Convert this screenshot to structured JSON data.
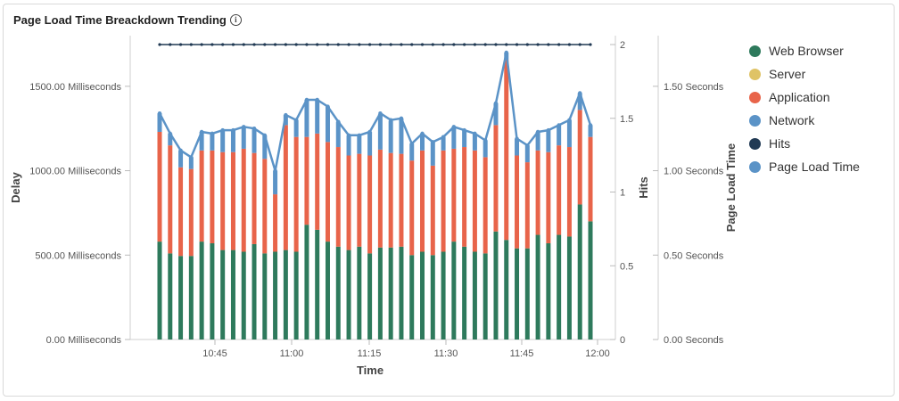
{
  "title": "Page Load Time Breackdown Trending",
  "legend": [
    {
      "label": "Web Browser",
      "color": "#2e7a5c"
    },
    {
      "label": "Server",
      "color": "#dfc366"
    },
    {
      "label": "Application",
      "color": "#e8644a"
    },
    {
      "label": "Network",
      "color": "#5b93c7"
    },
    {
      "label": "Hits",
      "color": "#213a54"
    },
    {
      "label": "Page Load Time",
      "color": "#5b93c7"
    }
  ],
  "chart_data": {
    "type": "bar",
    "stacked": true,
    "xlabel": "Time",
    "ylabel_left": "Delay",
    "ylabel_right_1": "Hits",
    "ylabel_right_2": "Page Load Time",
    "x_ticks": [
      "10:45",
      "11:00",
      "11:15",
      "11:30",
      "11:45",
      "12:00"
    ],
    "y_left_ticks": [
      "0.00 Milliseconds",
      "500.00 Milliseconds",
      "1000.00 Milliseconds",
      "1500.00 Milliseconds"
    ],
    "y_left_range": [
      0,
      1800
    ],
    "y_hits_ticks": [
      "0",
      "0.5",
      "1",
      "1.5",
      "2"
    ],
    "y_hits_range": [
      0,
      2
    ],
    "y_plt_ticks": [
      "0.00 Seconds",
      "0.50 Seconds",
      "1.00 Seconds",
      "1.50 Seconds"
    ],
    "y_plt_range": [
      0,
      1.8
    ],
    "series": [
      {
        "name": "Web Browser",
        "values": [
          580,
          510,
          495,
          495,
          580,
          570,
          530,
          530,
          520,
          565,
          510,
          520,
          530,
          520,
          680,
          650,
          580,
          550,
          530,
          550,
          510,
          545,
          545,
          550,
          500,
          520,
          500,
          520,
          580,
          550,
          520,
          510,
          640,
          590,
          540,
          540,
          620,
          570,
          620,
          610,
          800,
          700
        ]
      },
      {
        "name": "Server",
        "values": [
          0,
          0,
          0,
          0,
          0,
          0,
          0,
          0,
          0,
          0,
          0,
          0,
          0,
          0,
          0,
          0,
          0,
          0,
          0,
          0,
          0,
          0,
          0,
          0,
          0,
          0,
          0,
          0,
          0,
          0,
          0,
          0,
          0,
          0,
          0,
          0,
          0,
          0,
          0,
          0,
          0,
          0
        ]
      },
      {
        "name": "Application",
        "values": [
          650,
          640,
          525,
          515,
          540,
          550,
          580,
          580,
          610,
          540,
          560,
          340,
          740,
          680,
          520,
          570,
          590,
          590,
          560,
          550,
          580,
          580,
          560,
          550,
          560,
          600,
          530,
          600,
          550,
          590,
          600,
          570,
          630,
          1070,
          550,
          510,
          500,
          540,
          530,
          530,
          560,
          500
        ]
      },
      {
        "name": "Network",
        "values": [
          110,
          70,
          100,
          70,
          110,
          100,
          130,
          130,
          130,
          140,
          140,
          140,
          60,
          100,
          220,
          200,
          210,
          150,
          120,
          110,
          140,
          210,
          190,
          210,
          100,
          100,
          140,
          80,
          130,
          100,
          100,
          100,
          130,
          40,
          100,
          100,
          110,
          130,
          120,
          160,
          100,
          70
        ]
      },
      {
        "name": "Hits",
        "values": [
          2,
          2,
          2,
          2,
          2,
          2,
          2,
          2,
          2,
          2,
          2,
          2,
          2,
          2,
          2,
          2,
          2,
          2,
          2,
          2,
          2,
          2,
          2,
          2,
          2,
          2,
          2,
          2,
          2,
          2,
          2,
          2,
          2,
          2,
          2,
          2,
          2,
          2,
          2,
          2,
          2,
          2
        ]
      },
      {
        "name": "Page Load Time",
        "values": [
          1.34,
          1.22,
          1.12,
          1.08,
          1.23,
          1.22,
          1.24,
          1.24,
          1.26,
          1.25,
          1.21,
          1.0,
          1.33,
          1.3,
          1.42,
          1.42,
          1.38,
          1.29,
          1.21,
          1.21,
          1.23,
          1.34,
          1.3,
          1.31,
          1.16,
          1.22,
          1.17,
          1.2,
          1.26,
          1.24,
          1.22,
          1.18,
          1.4,
          1.7,
          1.19,
          1.15,
          1.23,
          1.24,
          1.27,
          1.3,
          1.46,
          1.27
        ]
      }
    ]
  }
}
